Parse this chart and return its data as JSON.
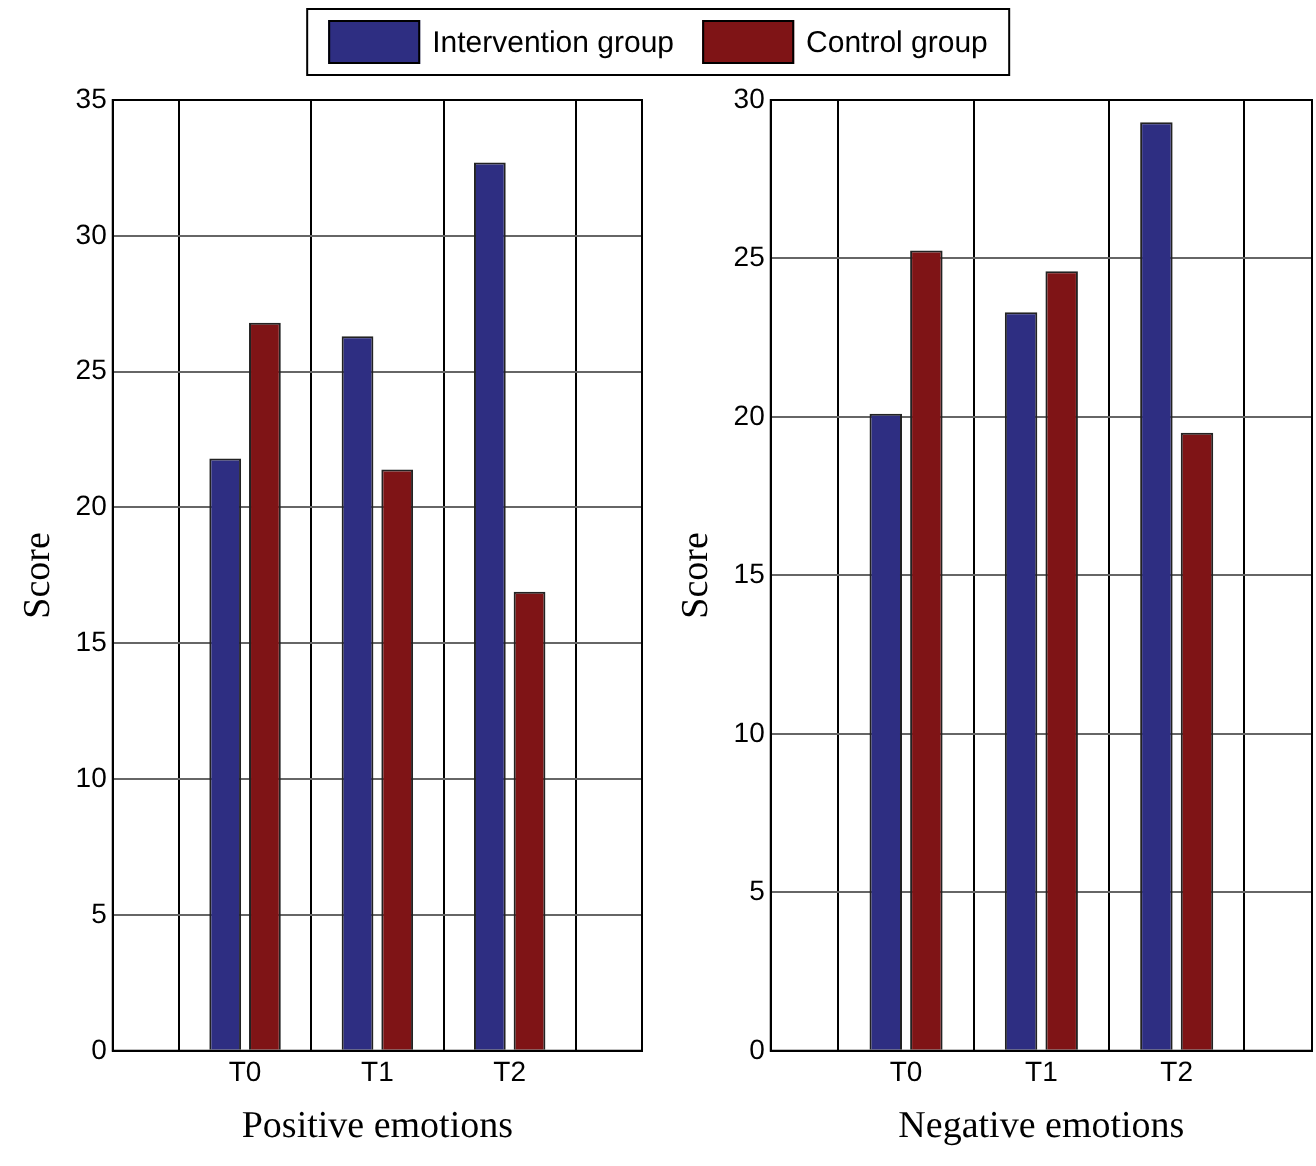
{
  "chart_data": [
    {
      "type": "bar",
      "xlabel": "Positive emotions",
      "ylabel": "Score",
      "categories": [
        "T0",
        "T1",
        "T2"
      ],
      "series": [
        {
          "name": "Intervention group",
          "color": "#2e2e82",
          "values": [
            21.8,
            26.3,
            32.7
          ]
        },
        {
          "name": "Control group",
          "color": "#7f1416",
          "values": [
            26.8,
            21.4,
            16.9
          ]
        }
      ],
      "ylim": [
        0,
        35
      ],
      "yticks": [
        0,
        5,
        10,
        15,
        20,
        25,
        30,
        35
      ],
      "grid": true,
      "legend": "top"
    },
    {
      "type": "bar",
      "xlabel": "Negative emotions",
      "ylabel": "Score",
      "categories": [
        "T0",
        "T1",
        "T2"
      ],
      "series": [
        {
          "color": "#2e2e82",
          "values": [
            20.1,
            23.3,
            29.3
          ]
        },
        {
          "color": "#7f1416",
          "values": [
            25.25,
            24.6,
            19.5
          ]
        }
      ],
      "ylim": [
        0,
        30
      ],
      "yticks": [
        0,
        5,
        10,
        15,
        20,
        25,
        30
      ],
      "grid": true
    }
  ]
}
